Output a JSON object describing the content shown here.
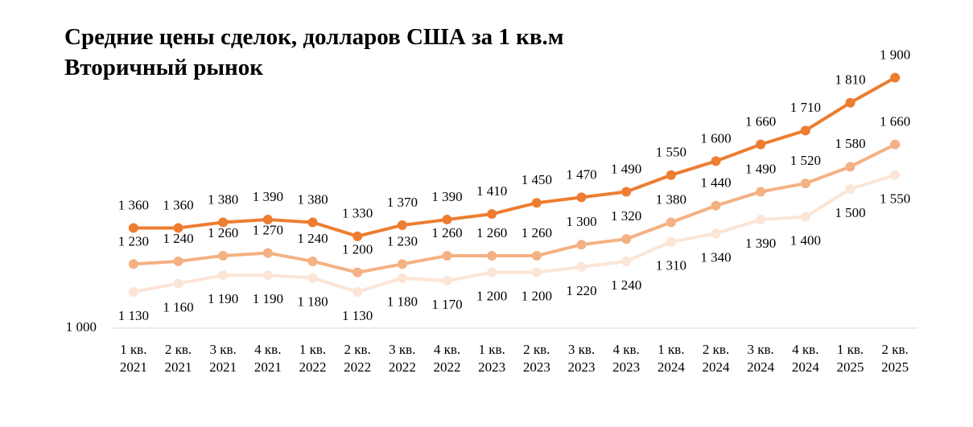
{
  "chart_data": {
    "type": "line",
    "title": "Средние цены сделок, долларов США за 1 кв.м",
    "subtitle": "Вторичный рынок",
    "categories": [
      "1 кв. 2021",
      "2 кв. 2021",
      "3 кв. 2021",
      "4 кв. 2021",
      "1 кв. 2022",
      "2 кв. 2022",
      "3 кв. 2022",
      "4 кв. 2022",
      "1 кв. 2023",
      "2 кв. 2023",
      "3 кв. 2023",
      "4 кв. 2023",
      "1 кв. 2024",
      "2 кв. 2024",
      "3 кв. 2024",
      "4 кв. 2024",
      "1 кв. 2025",
      "2 кв. 2025"
    ],
    "ylim": [
      1000,
      2000
    ],
    "yticks": [
      {
        "value": 1000,
        "label": "1 000"
      }
    ],
    "grid": false,
    "series": [
      {
        "color": "#ed7d31",
        "label_position": "above",
        "values": [
          1360,
          1360,
          1380,
          1390,
          1380,
          1330,
          1370,
          1390,
          1410,
          1450,
          1470,
          1490,
          1550,
          1600,
          1660,
          1710,
          1810,
          1900
        ],
        "value_labels": [
          "1 360",
          "1 360",
          "1 380",
          "1 390",
          "1 380",
          "1 330",
          "1 370",
          "1 390",
          "1 410",
          "1 450",
          "1 470",
          "1 490",
          "1 550",
          "1 600",
          "1 660",
          "1 710",
          "1 810",
          "1 900"
        ]
      },
      {
        "color": "#f4b183",
        "label_position": "above",
        "values": [
          1230,
          1240,
          1260,
          1270,
          1240,
          1200,
          1230,
          1260,
          1260,
          1260,
          1300,
          1320,
          1380,
          1440,
          1490,
          1520,
          1580,
          1660
        ],
        "value_labels": [
          "1 230",
          "1 240",
          "1 260",
          "1 270",
          "1 240",
          "1 200",
          "1 230",
          "1 260",
          "1 260",
          "1 260",
          "1 300",
          "1 320",
          "1 380",
          "1 440",
          "1 490",
          "1 520",
          "1 580",
          "1 660"
        ]
      },
      {
        "color": "#fbe5d6",
        "label_position": "below",
        "values": [
          1130,
          1160,
          1190,
          1190,
          1180,
          1130,
          1180,
          1170,
          1200,
          1200,
          1220,
          1240,
          1310,
          1340,
          1390,
          1400,
          1500,
          1550
        ],
        "value_labels": [
          "1 130",
          "1 160",
          "1 190",
          "1 190",
          "1 180",
          "1 130",
          "1 180",
          "1 170",
          "1 200",
          "1 200",
          "1 220",
          "1 240",
          "1 310",
          "1 340",
          "1 390",
          "1 400",
          "1 500",
          "1 550"
        ]
      }
    ]
  }
}
